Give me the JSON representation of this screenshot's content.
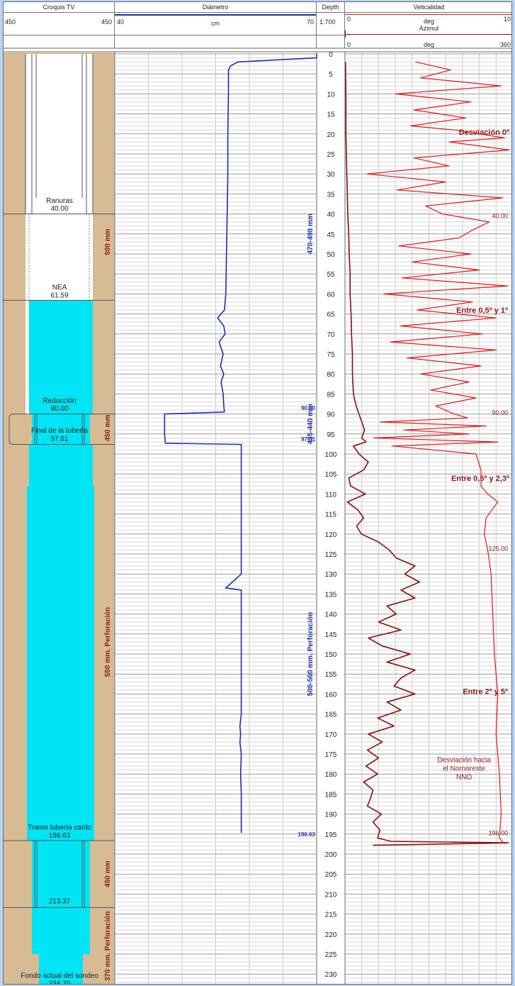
{
  "header": {
    "croquis": {
      "title": "Croquis TV",
      "min": "450",
      "max": "450"
    },
    "diametro": {
      "title": "Diámetro",
      "min": "40",
      "unit": "cm",
      "max": "70"
    },
    "depth": {
      "title": "Depth",
      "scale": "1:700"
    },
    "verticalidad": {
      "title": "Veticalidad",
      "min": "0",
      "unit": "deg",
      "max": "10"
    },
    "azimut": {
      "title": "Azimut",
      "min": "0",
      "unit": "deg",
      "max": "360"
    }
  },
  "croquis_labels": [
    {
      "text": "Ranuras",
      "depth": 36.5
    },
    {
      "text": "40.00",
      "depth": 38.5
    },
    {
      "text": "NEA",
      "depth": 58.2
    },
    {
      "text": "61.59",
      "depth": 60.2
    },
    {
      "text": "Reducción",
      "depth": 86.5
    },
    {
      "text": "90.00",
      "depth": 88.5
    },
    {
      "text": "Final de la tubería",
      "depth": 94.0
    },
    {
      "text": "97.61",
      "depth": 96.0
    },
    {
      "text": "Tramo tubería caído",
      "depth": 193.2
    },
    {
      "text": "196.63",
      "depth": 195.2
    },
    {
      "text": "213.37",
      "depth": 211.6
    },
    {
      "text": "Fondo actual del sondeo",
      "depth": 230.2
    },
    {
      "text": "234.70",
      "depth": 232.2
    }
  ],
  "diameter_zone_labels": [
    {
      "text": "500 mm",
      "depth": 47
    },
    {
      "text": "450 mm",
      "depth": 93.5
    },
    {
      "text": "550 mm. Perforación",
      "depth": 147
    },
    {
      "text": "450 mm",
      "depth": 205
    },
    {
      "text": "370 mm. Perforación",
      "depth": 223
    }
  ],
  "depth_markers": [
    {
      "text": "90.00",
      "depth": 88.5
    },
    {
      "text": "97.61",
      "depth": 96.3
    },
    {
      "text": "196.63",
      "depth": 195.0
    }
  ],
  "interval_labels": [
    {
      "text": "470-490 mm",
      "depth": 45
    },
    {
      "text": "435-440 mm",
      "depth": 92.5
    },
    {
      "text": "500-560 mm. Perforación",
      "depth": 150
    }
  ],
  "verticality_annotations": [
    {
      "text": "Desviación 0º",
      "depth": 19.5
    },
    {
      "text": "40.00",
      "depth": 40.3
    },
    {
      "text": "Entre 0,5º y 1º",
      "depth": 64
    },
    {
      "text": "90.00",
      "depth": 89.5
    },
    {
      "text": "Entre 0,5º y 2,3º",
      "depth": 106
    },
    {
      "text": "125.00",
      "depth": 123.5
    },
    {
      "text": "Entre 2º y 5º",
      "depth": 159.3
    },
    {
      "text": "Desviación hacia",
      "depth": 176.3
    },
    {
      "text": "el Nornoreste",
      "depth": 178.5
    },
    {
      "text": "NNO",
      "depth": 180.6
    },
    {
      "text": "196.00",
      "depth": 194.6
    }
  ],
  "colors": {
    "diameter": "#1c2fb0",
    "verticality": "#e01818",
    "azimuth": "#8b0d0d",
    "water": "#00e5f5",
    "formation": "#d7bb94",
    "label": "#8b1a1a",
    "marker": "#2233aa"
  },
  "chart_data": {
    "type": "line",
    "title": "",
    "depth_axis": {
      "label": "Depth",
      "range": [
        0,
        232
      ],
      "ticks": [
        0,
        5,
        10,
        15,
        20,
        25,
        30,
        35,
        40,
        45,
        50,
        55,
        60,
        65,
        70,
        75,
        80,
        85,
        90,
        95,
        100,
        105,
        110,
        115,
        120,
        125,
        130,
        135,
        140,
        145,
        150,
        155,
        160,
        165,
        170,
        175,
        180,
        185,
        190,
        195,
        200,
        205,
        210,
        215,
        220,
        225,
        230
      ]
    },
    "diameter": {
      "unit": "cm",
      "range": [
        40,
        70
      ],
      "depth": [
        0,
        1,
        2,
        3,
        4,
        10,
        20,
        30,
        40,
        50,
        60,
        64,
        66,
        68,
        70,
        72,
        75,
        78,
        80,
        82,
        85,
        88,
        89.5,
        90,
        92,
        95,
        97.3,
        97.6,
        100,
        110,
        120,
        130,
        133.5,
        134,
        134.5,
        135,
        140,
        150,
        160,
        165,
        168,
        170,
        172,
        175,
        180,
        185,
        190,
        194,
        194.5,
        194.7
      ],
      "values": [
        70,
        70,
        58.3,
        57.2,
        56.9,
        56.9,
        56.8,
        56.8,
        56.7,
        56.6,
        56.5,
        56.3,
        55.3,
        56.2,
        56.4,
        55.5,
        56.1,
        55.7,
        56.2,
        55.8,
        56.1,
        56.2,
        56.3,
        47.4,
        47.4,
        47.4,
        47.5,
        58.8,
        58.8,
        58.8,
        58.8,
        58.8,
        56.5,
        58.8,
        58.8,
        58.8,
        58.8,
        58.8,
        58.8,
        58.8,
        58.6,
        58.7,
        58.6,
        58.8,
        58.7,
        58.8,
        58.8,
        58.8,
        58.8,
        58.8
      ]
    },
    "verticality": {
      "unit": "deg",
      "range": [
        0,
        10
      ],
      "depth": [
        2,
        4,
        6,
        8,
        10,
        12,
        14,
        16,
        18,
        19,
        21,
        22,
        24,
        26,
        28,
        30,
        32,
        34,
        36,
        38,
        40,
        42,
        44,
        46,
        48,
        50,
        52,
        54,
        56,
        58,
        60,
        62,
        64,
        66,
        68,
        70,
        72,
        74,
        76,
        78,
        80,
        82,
        84,
        86,
        88,
        90,
        91,
        92,
        93,
        94,
        95,
        96,
        97,
        98,
        100,
        104,
        108,
        110,
        112,
        116,
        120,
        124,
        130,
        140,
        150,
        160,
        170,
        180,
        190,
        196,
        197.5
      ],
      "values": [
        4.2,
        6.3,
        4.5,
        9.3,
        3.0,
        7.5,
        4.1,
        7.2,
        3.9,
        6.5,
        9.5,
        6.2,
        9.8,
        4.1,
        6.2,
        1.3,
        6.0,
        3.1,
        9.4,
        4.8,
        5.8,
        8.6,
        7.6,
        6.8,
        3.2,
        7.5,
        4.0,
        8.0,
        3.4,
        9.7,
        2.3,
        7.6,
        4.3,
        9.0,
        3.3,
        8.2,
        2.7,
        9.0,
        3.7,
        8.1,
        4.5,
        7.4,
        5.1,
        7.8,
        5.4,
        6.5,
        7.3,
        2.1,
        8.4,
        3.5,
        7.4,
        1.7,
        9.1,
        2.8,
        7.8,
        8.1,
        8.1,
        8.5,
        9.1,
        8.4,
        8.3,
        8.5,
        8.7,
        8.8,
        8.9,
        9.1,
        9.0,
        9.2,
        9.3,
        9.2,
        9.5
      ]
    },
    "azimuth": {
      "unit": "deg",
      "range": [
        0,
        360
      ],
      "depth": [
        2,
        10,
        20,
        30,
        35,
        40,
        45,
        50,
        55,
        60,
        65,
        70,
        75,
        80,
        85,
        88,
        90,
        92,
        94,
        96,
        97,
        98,
        100,
        102,
        104,
        106,
        108,
        110,
        112,
        114,
        116,
        118,
        120,
        122,
        124,
        126,
        128,
        130,
        132,
        134,
        136,
        138,
        140,
        142,
        144,
        146,
        148,
        150,
        152,
        154,
        156,
        158,
        160,
        162,
        164,
        166,
        168,
        170,
        172,
        174,
        176,
        178,
        180,
        182,
        184,
        186,
        188,
        190,
        192,
        194,
        196,
        196.8,
        197.2,
        197.8
      ],
      "values": [
        1,
        2,
        2,
        4,
        5,
        6,
        8,
        9,
        11,
        11,
        13,
        14,
        16,
        16,
        18,
        24,
        30,
        36,
        42,
        36,
        45,
        18,
        30,
        50,
        40,
        8,
        12,
        44,
        5,
        28,
        40,
        25,
        35,
        72,
        95,
        110,
        150,
        128,
        160,
        120,
        150,
        90,
        110,
        72,
        120,
        50,
        80,
        140,
        90,
        150,
        120,
        105,
        150,
        90,
        120,
        70,
        105,
        50,
        80,
        48,
        72,
        45,
        70,
        40,
        60,
        55,
        48,
        78,
        60,
        75,
        70,
        98,
        350,
        60
      ]
    }
  }
}
